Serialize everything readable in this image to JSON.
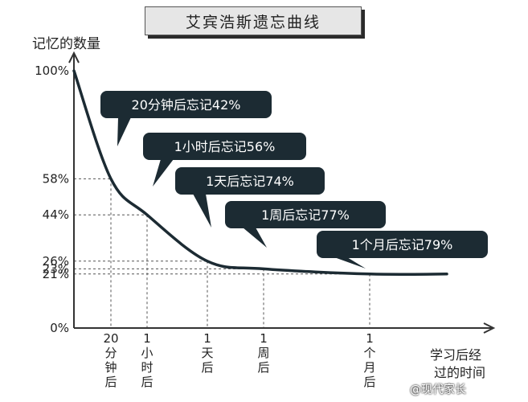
{
  "chart_data": {
    "type": "line",
    "title": "艾宾浩斯遗忘曲线",
    "ylabel": "记忆的数量",
    "xlabel_line1": "学习后经",
    "xlabel_line2": "过的时间",
    "y_ticks": [
      "100%",
      "58%",
      "44%",
      "26%",
      "23%",
      "21%",
      "0%"
    ],
    "y_tick_values": [
      100,
      58,
      44,
      26,
      23,
      21,
      0
    ],
    "x_ticks": [
      {
        "lines": [
          "20",
          "分",
          "钟",
          "后"
        ]
      },
      {
        "lines": [
          "1",
          "小",
          "时",
          "后"
        ]
      },
      {
        "lines": [
          "1",
          "天",
          "后"
        ]
      },
      {
        "lines": [
          "1",
          "周",
          "后"
        ]
      },
      {
        "lines": [
          "1",
          "个",
          "月",
          "后"
        ]
      }
    ],
    "points": [
      {
        "time": "0",
        "retention": 100
      },
      {
        "time": "20分钟后",
        "retention": 58
      },
      {
        "time": "1小时后",
        "retention": 44
      },
      {
        "time": "1天后",
        "retention": 26
      },
      {
        "time": "1周后",
        "retention": 23
      },
      {
        "time": "1个月后",
        "retention": 21
      }
    ],
    "annotations": [
      "20分钟后忘记42%",
      "1小时后忘记56%",
      "1天后忘记74%",
      "1周后忘记77%",
      "1个月后忘记79%"
    ],
    "ylim": [
      0,
      100
    ],
    "grid": "dashed guides to curve points",
    "colors": {
      "curve": "#1c2b33",
      "callout": "#1c2b33",
      "callout_text": "#ffffff",
      "axis": "#333333"
    }
  },
  "watermark": "@现代家长"
}
